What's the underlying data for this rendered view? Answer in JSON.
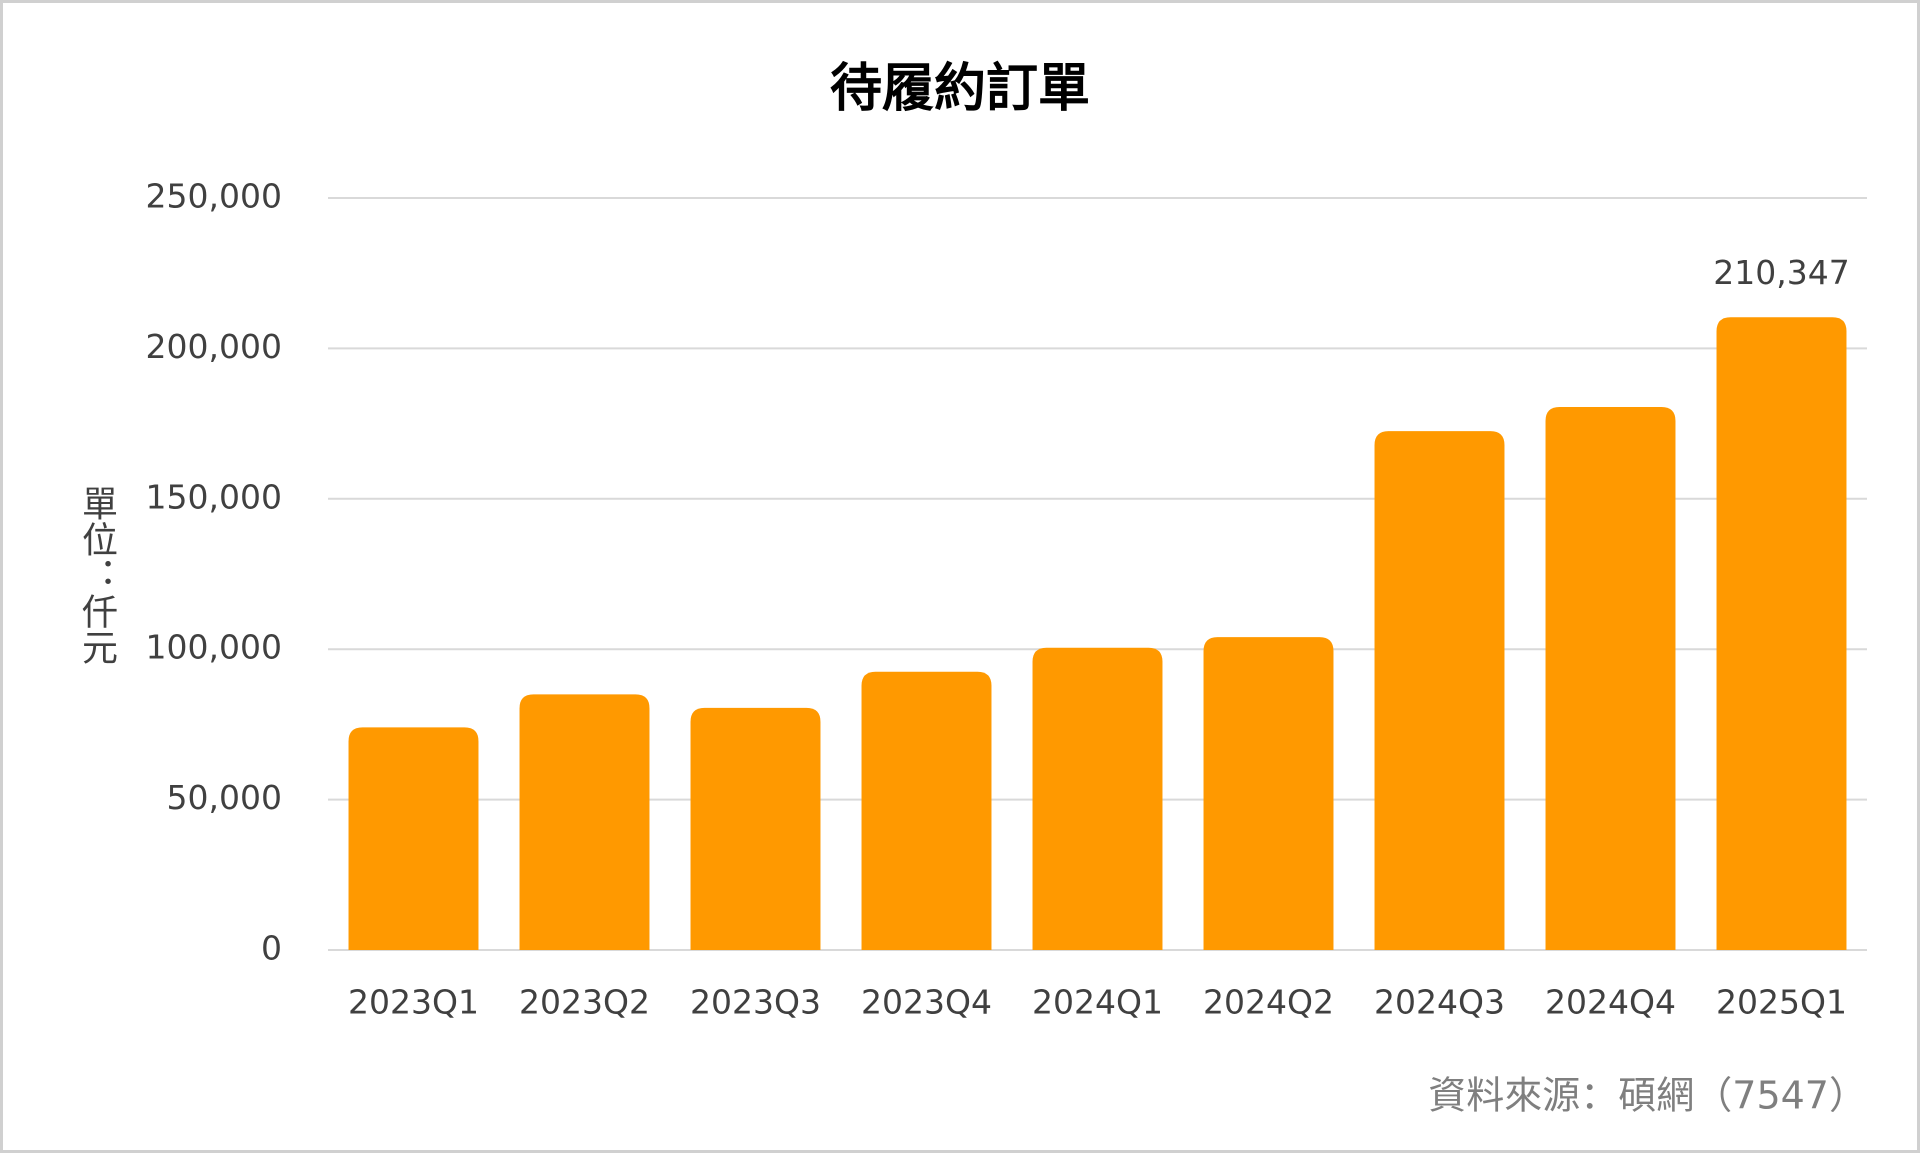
{
  "chart_data": {
    "type": "bar",
    "title": "待履約訂單",
    "y_label": "單位：仟元",
    "source": "資料來源：碩網（7547）",
    "categories": [
      "2023Q1",
      "2023Q2",
      "2023Q3",
      "2023Q4",
      "2024Q1",
      "2024Q2",
      "2024Q3",
      "2024Q4",
      "2025Q1"
    ],
    "values": [
      74000,
      85000,
      80500,
      92500,
      100500,
      104000,
      172500,
      180500,
      210347
    ],
    "value_labels": [
      null,
      null,
      null,
      null,
      null,
      null,
      null,
      null,
      "210,347"
    ],
    "color": "#ff9900",
    "ylim": [
      0,
      250000
    ],
    "yticks": [
      0,
      {
        "value": 50000,
        "label": "50,000"
      },
      {
        "value": 100000,
        "label": "100,000"
      },
      {
        "value": 150000,
        "label": "150,000"
      },
      {
        "value": 200000,
        "label": "200,000"
      },
      {
        "value": 250000,
        "label": "250,000"
      }
    ],
    "grid": true
  }
}
